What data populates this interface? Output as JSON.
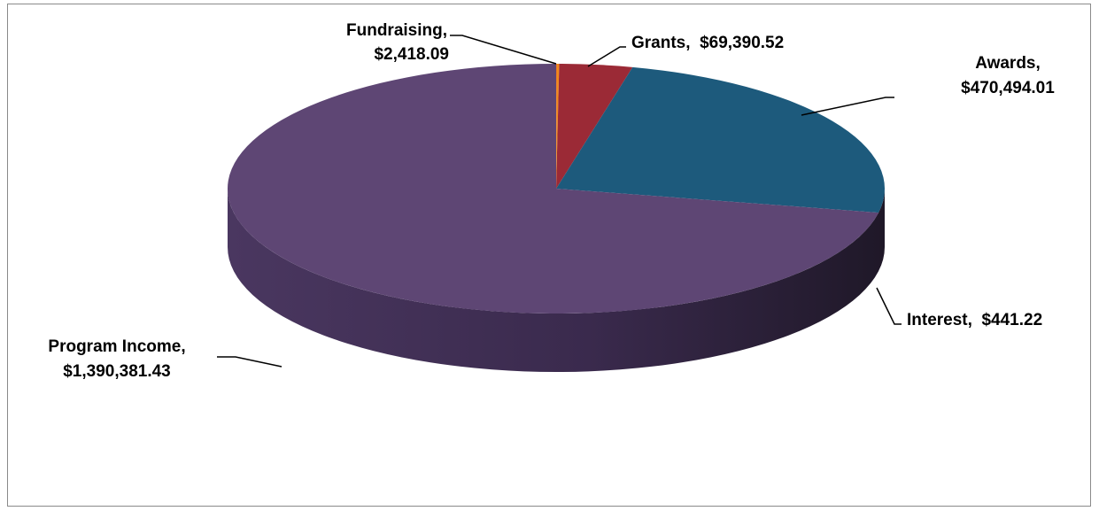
{
  "chart_data": {
    "type": "pie",
    "style": "3d",
    "slices": [
      {
        "name": "Interest",
        "value": 441.22,
        "label_line1": "Interest,  $441.22",
        "label_line2": "",
        "color": "#e06030"
      },
      {
        "name": "Fundraising",
        "value": 2418.09,
        "label_line1": "Fundraising,",
        "label_line2": "$2,418.09",
        "color": "#f08a1c"
      },
      {
        "name": "Grants",
        "value": 69390.52,
        "label_line1": "Grants,  $69,390.52",
        "label_line2": "",
        "color": "#9b2a36"
      },
      {
        "name": "Awards",
        "value": 470494.01,
        "label_line1": "Awards,",
        "label_line2": "$470,494.01",
        "color": "#1d5a7c"
      },
      {
        "name": "Program Income",
        "value": 1390381.43,
        "label_line1": "Program Income,",
        "label_line2": "$1,390,381.43",
        "color": "#5e4674"
      }
    ]
  }
}
